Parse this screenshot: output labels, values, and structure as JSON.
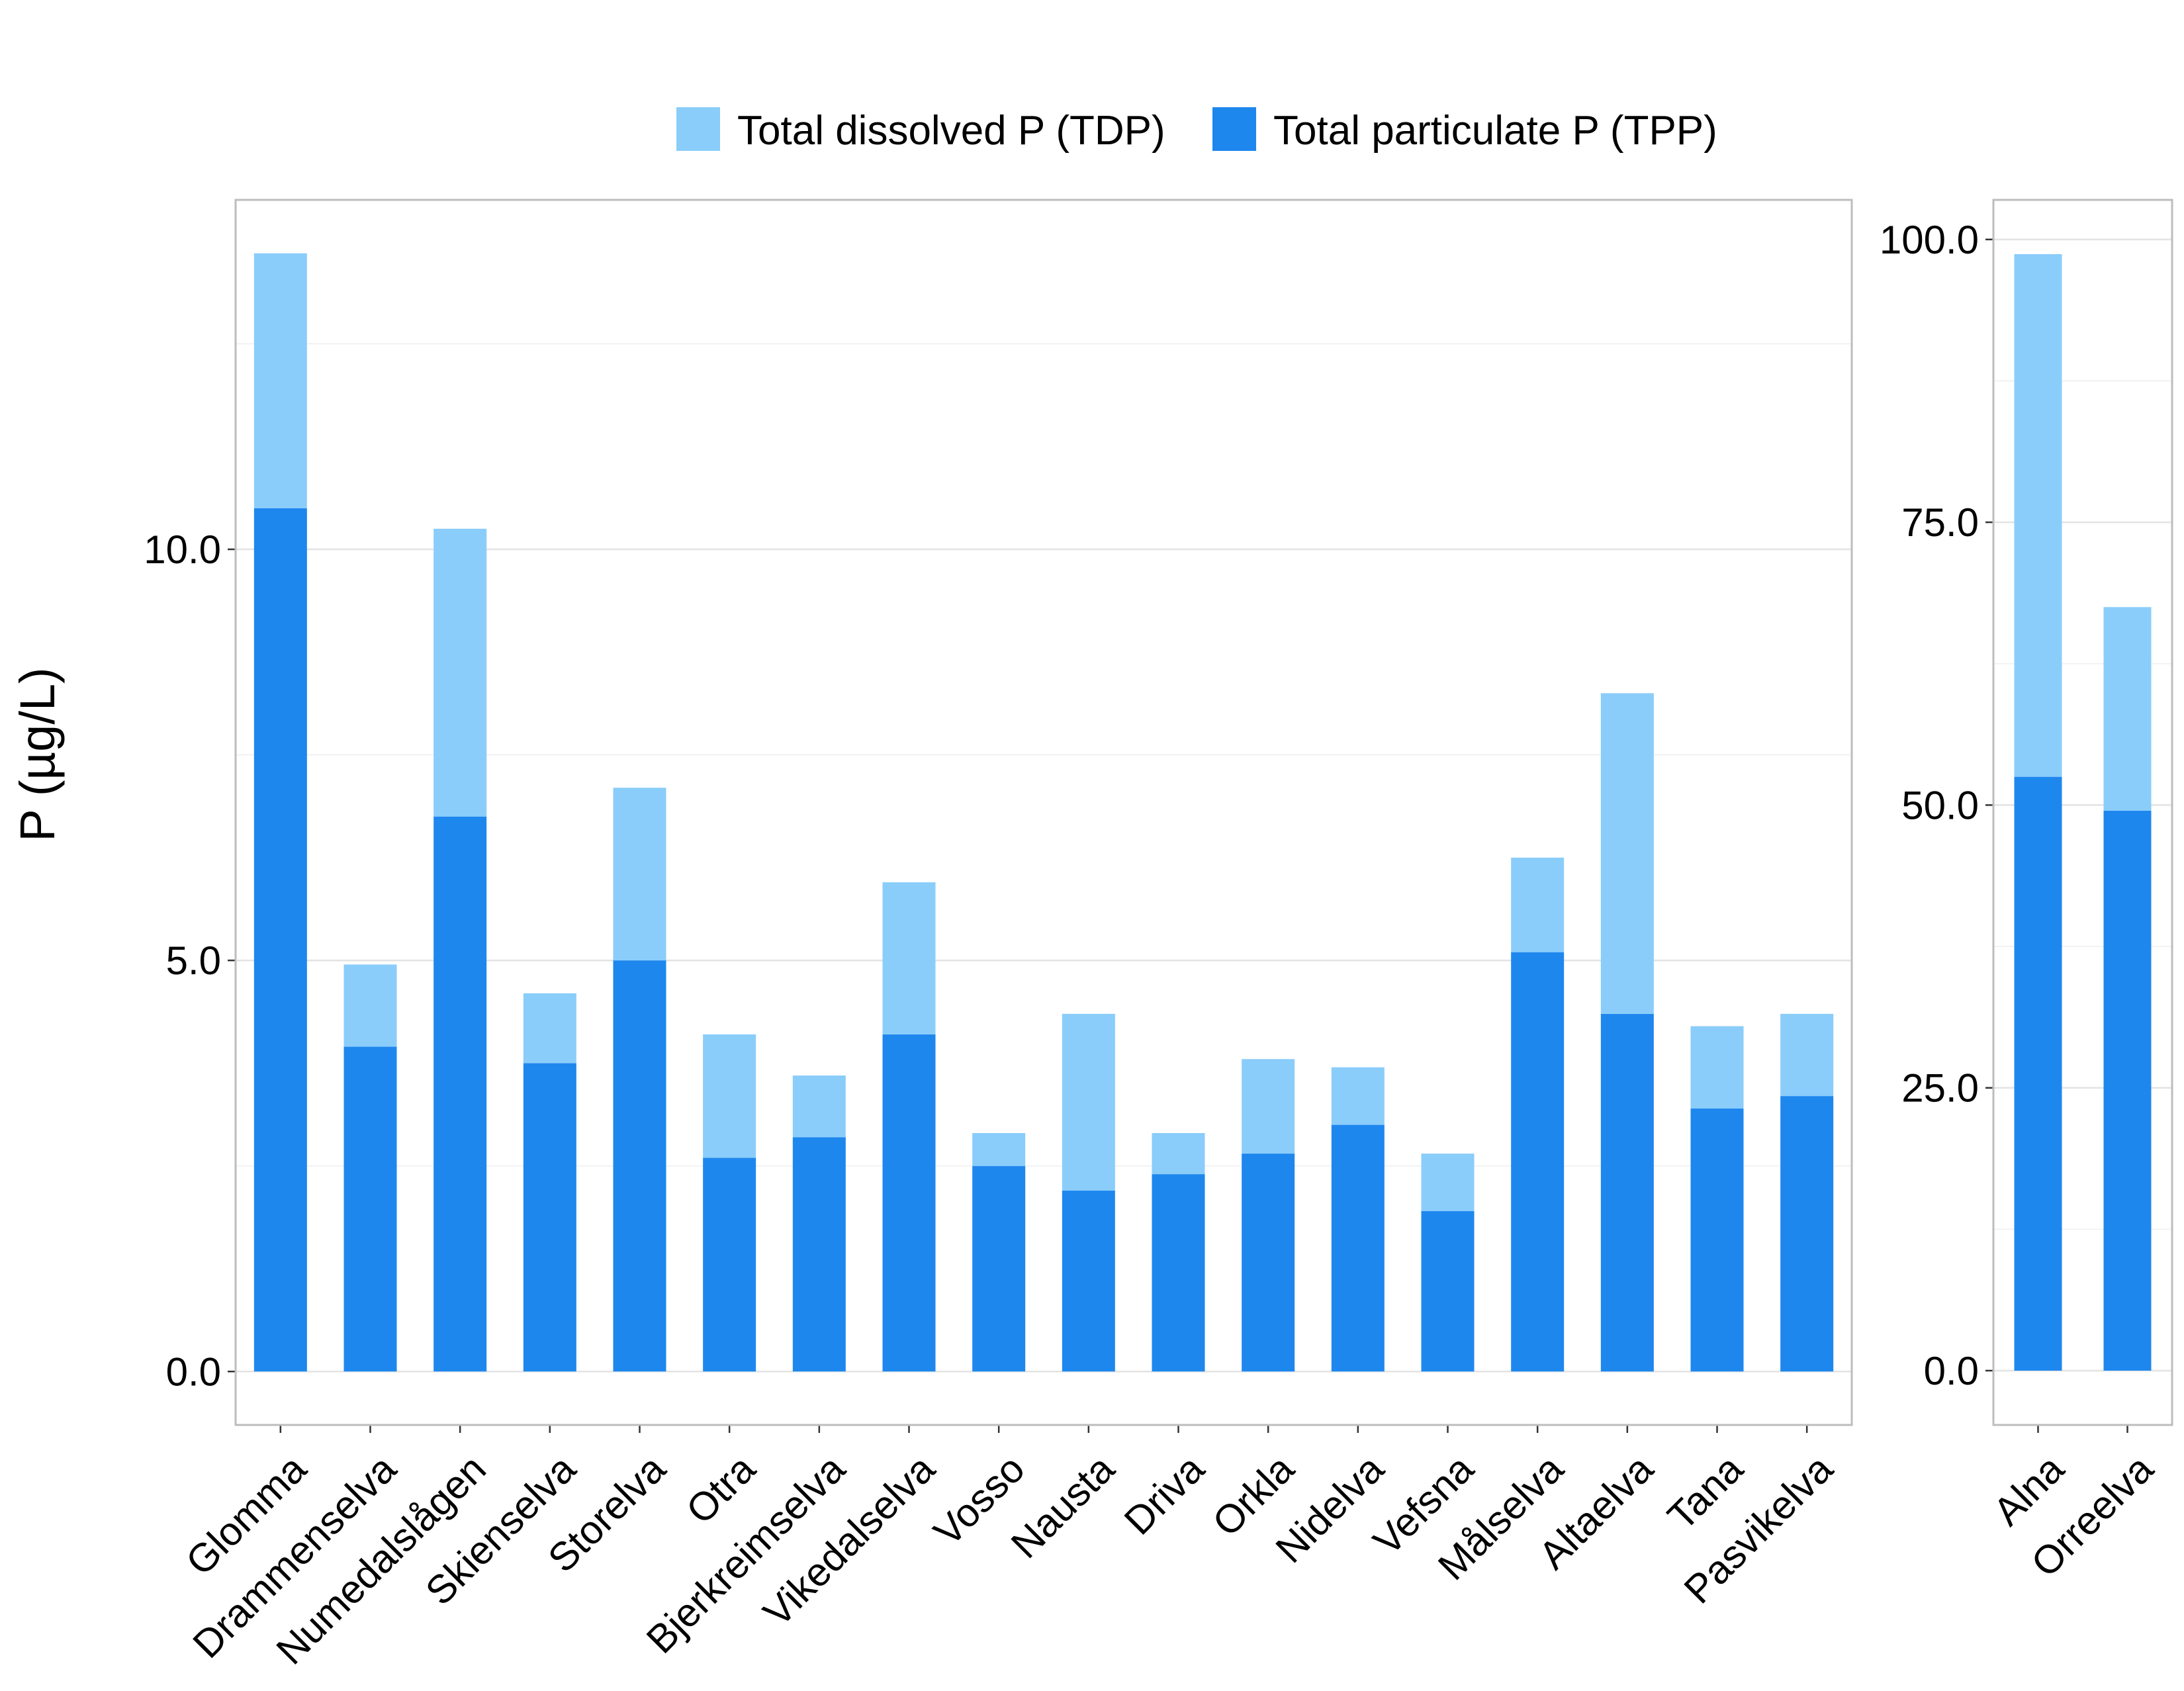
{
  "chart_data": {
    "type": "bar",
    "stacked": true,
    "ylabel": "P (µg/L)",
    "legend": {
      "placement": "top",
      "entries": [
        {
          "name": "Total dissolved P (TDP)",
          "color": "#8ACDFA"
        },
        {
          "name": "Total particulate P (TPP)",
          "color": "#1E87EE"
        }
      ]
    },
    "grid": true,
    "panels": [
      {
        "categories": [
          "Glomma",
          "Drammenselva",
          "Numedalslågen",
          "Skienselva",
          "Storelva",
          "Otra",
          "Bjerkreimselva",
          "Vikedalselva",
          "Vosso",
          "Nausta",
          "Driva",
          "Orkla",
          "Nidelva",
          "Vefsna",
          "Målselva",
          "Altaelva",
          "Tana",
          "Pasvikelva"
        ],
        "ylim": [
          -0.65,
          14.25
        ],
        "yticks": [
          0,
          5,
          10
        ],
        "ytick_labels": [
          "0.0",
          "5.0",
          "10.0"
        ],
        "series": [
          {
            "name": "Total particulate P (TPP)",
            "values": [
              10.5,
              3.95,
              6.75,
              3.75,
              5.0,
              2.6,
              2.85,
              4.1,
              2.5,
              2.2,
              2.4,
              2.65,
              3.0,
              1.95,
              5.1,
              4.35,
              3.2,
              3.35
            ]
          },
          {
            "name": "Total dissolved P (TDP)",
            "values": [
              3.1,
              1.0,
              3.5,
              0.85,
              2.1,
              1.5,
              0.75,
              1.85,
              0.4,
              2.15,
              0.5,
              1.15,
              0.7,
              0.7,
              1.15,
              3.9,
              1.0,
              1.0
            ]
          }
        ]
      },
      {
        "categories": [
          "Alna",
          "Orreelva"
        ],
        "ylim": [
          -4.8,
          103.5
        ],
        "yticks": [
          0,
          25,
          50,
          75,
          100
        ],
        "ytick_labels": [
          "0.0",
          "25.0",
          "50.0",
          "75.0",
          "100.0"
        ],
        "series": [
          {
            "name": "Total particulate P (TPP)",
            "values": [
              52.5,
              49.5
            ]
          },
          {
            "name": "Total dissolved P (TDP)",
            "values": [
              46.2,
              18.0
            ]
          }
        ]
      }
    ]
  }
}
